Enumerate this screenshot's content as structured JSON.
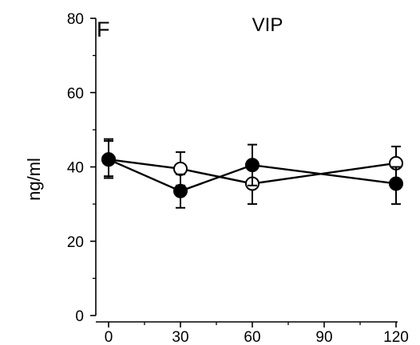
{
  "chart_data": {
    "type": "line",
    "title": "VIP",
    "panel_label": "F",
    "xlabel": "",
    "ylabel": "ng/ml",
    "xlim": [
      0,
      120
    ],
    "ylim": [
      0,
      80
    ],
    "x_ticks": [
      0,
      30,
      60,
      90,
      120
    ],
    "y_ticks": [
      0,
      20,
      40,
      60,
      80
    ],
    "grid": false,
    "series": [
      {
        "marker": "open-circle",
        "color": "#000000",
        "x": [
          0,
          30,
          60,
          120
        ],
        "y": [
          42,
          39.5,
          35.5,
          41
        ],
        "err_upper": [
          47,
          44,
          40,
          45.5
        ],
        "err_lower": [
          37,
          35,
          30,
          36.5
        ]
      },
      {
        "marker": "filled-circle",
        "color": "#000000",
        "x": [
          0,
          30,
          60,
          120
        ],
        "y": [
          42,
          33.5,
          40.5,
          35.5
        ],
        "err_upper": [
          47.5,
          38,
          46,
          40
        ],
        "err_lower": [
          37.5,
          29,
          35,
          30
        ]
      }
    ]
  }
}
